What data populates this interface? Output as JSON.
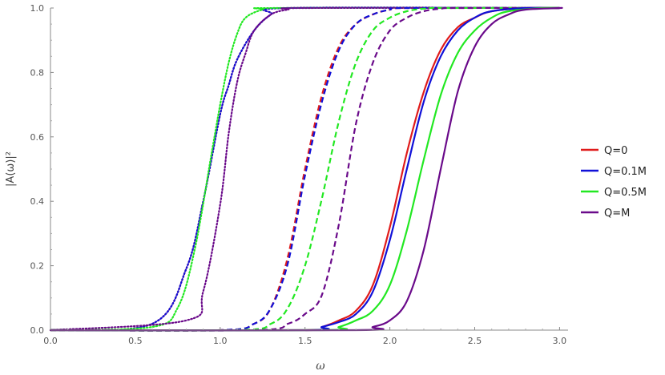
{
  "chart_data": {
    "type": "line",
    "title": "",
    "xlabel": "ω",
    "ylabel": "|A(ω)|²",
    "xlim": [
      0,
      3.05
    ],
    "ylim": [
      0,
      1.0
    ],
    "x_ticks": [
      "0.0",
      "0.5",
      "1.0",
      "1.5",
      "2.0",
      "2.5",
      "3.0"
    ],
    "y_ticks": [
      "0.0",
      "0.2",
      "0.4",
      "0.6",
      "0.8",
      "1.0"
    ],
    "grid": false,
    "legend_position": "right",
    "legend": [
      {
        "label": "Q=0",
        "color": "#e01b1b"
      },
      {
        "label": "Q=0.1M",
        "color": "#1010d8"
      },
      {
        "label": "Q=0.5M",
        "color": "#22e822"
      },
      {
        "label": "Q=M",
        "color": "#6a0a8a"
      }
    ],
    "series": [
      {
        "group": "Q=0",
        "style": "dotted",
        "color": "#e01b1b",
        "x": [
          0.6,
          0.8,
          0.9,
          1.0,
          1.05,
          1.1,
          1.2,
          1.3,
          1.4
        ],
        "y": [
          0.02,
          0.19,
          0.4,
          0.67,
          0.76,
          0.84,
          0.93,
          0.98,
          1.0
        ]
      },
      {
        "group": "Q=0.1M",
        "style": "dotted",
        "color": "#1010d8",
        "x": [
          0.6,
          0.8,
          0.9,
          1.0,
          1.05,
          1.1,
          1.2,
          1.3,
          1.4
        ],
        "y": [
          0.02,
          0.19,
          0.4,
          0.67,
          0.76,
          0.84,
          0.93,
          0.98,
          1.0
        ]
      },
      {
        "group": "Q=0.5M",
        "style": "dotted",
        "color": "#22e822",
        "x": [
          0.6,
          0.75,
          0.85,
          0.95,
          1.0,
          1.05,
          1.1,
          1.15,
          1.25,
          1.35
        ],
        "y": [
          0.01,
          0.07,
          0.25,
          0.55,
          0.7,
          0.83,
          0.92,
          0.97,
          0.995,
          1.0
        ]
      },
      {
        "group": "Q=M",
        "style": "dotted",
        "color": "#6a0a8a",
        "x": [
          0.8,
          0.9,
          1.0,
          1.05,
          1.1,
          1.15,
          1.2,
          1.3,
          1.4,
          1.5
        ],
        "y": [
          0.03,
          0.12,
          0.39,
          0.61,
          0.77,
          0.86,
          0.93,
          0.98,
          0.995,
          1.0
        ]
      },
      {
        "group": "Q=0",
        "style": "dashed",
        "color": "#e01b1b",
        "x": [
          1.0,
          1.2,
          1.3,
          1.4,
          1.5,
          1.6,
          1.7,
          1.8,
          1.9,
          2.0,
          2.1
        ],
        "y": [
          0.0,
          0.02,
          0.07,
          0.23,
          0.5,
          0.73,
          0.88,
          0.95,
          0.98,
          0.995,
          1.0
        ]
      },
      {
        "group": "Q=0.1M",
        "style": "dashed",
        "color": "#1010d8",
        "x": [
          1.0,
          1.2,
          1.3,
          1.4,
          1.5,
          1.6,
          1.7,
          1.8,
          1.9,
          2.0,
          2.1
        ],
        "y": [
          0.0,
          0.02,
          0.07,
          0.21,
          0.48,
          0.71,
          0.87,
          0.95,
          0.98,
          0.995,
          1.0
        ]
      },
      {
        "group": "Q=0.5M",
        "style": "dashed",
        "color": "#22e822",
        "x": [
          1.1,
          1.3,
          1.4,
          1.5,
          1.6,
          1.7,
          1.8,
          1.9,
          2.0,
          2.1,
          2.2,
          2.3
        ],
        "y": [
          0.0,
          0.02,
          0.07,
          0.2,
          0.41,
          0.65,
          0.83,
          0.93,
          0.97,
          0.99,
          0.998,
          1.0
        ]
      },
      {
        "group": "Q=M",
        "style": "dashed",
        "color": "#6a0a8a",
        "x": [
          1.2,
          1.4,
          1.5,
          1.6,
          1.7,
          1.8,
          1.9,
          2.0,
          2.1,
          2.2,
          2.3,
          2.4
        ],
        "y": [
          0.0,
          0.02,
          0.05,
          0.11,
          0.33,
          0.64,
          0.83,
          0.93,
          0.97,
          0.99,
          0.998,
          1.0
        ]
      },
      {
        "group": "Q=0",
        "style": "solid",
        "color": "#e01b1b",
        "x": [
          1.5,
          1.6,
          1.7,
          1.8,
          1.9,
          2.0,
          2.1,
          2.2,
          2.3,
          2.4,
          2.5,
          2.6,
          2.8
        ],
        "y": [
          0.0,
          0.01,
          0.03,
          0.06,
          0.14,
          0.32,
          0.55,
          0.74,
          0.87,
          0.94,
          0.97,
          0.99,
          1.0
        ]
      },
      {
        "group": "Q=0.1M",
        "style": "solid",
        "color": "#1010d8",
        "x": [
          1.5,
          1.6,
          1.7,
          1.8,
          1.9,
          2.0,
          2.1,
          2.2,
          2.3,
          2.4,
          2.5,
          2.6,
          2.8
        ],
        "y": [
          0.0,
          0.01,
          0.025,
          0.05,
          0.12,
          0.28,
          0.5,
          0.71,
          0.85,
          0.93,
          0.97,
          0.99,
          1.0
        ]
      },
      {
        "group": "Q=0.5M",
        "style": "solid",
        "color": "#22e822",
        "x": [
          1.6,
          1.7,
          1.8,
          1.9,
          2.0,
          2.1,
          2.2,
          2.3,
          2.4,
          2.5,
          2.6,
          2.7,
          2.9
        ],
        "y": [
          0.0,
          0.01,
          0.03,
          0.06,
          0.14,
          0.31,
          0.53,
          0.73,
          0.86,
          0.93,
          0.97,
          0.99,
          1.0
        ]
      },
      {
        "group": "Q=M",
        "style": "solid",
        "color": "#6a0a8a",
        "x": [
          1.8,
          1.9,
          2.0,
          2.1,
          2.2,
          2.3,
          2.4,
          2.5,
          2.6,
          2.7,
          2.8,
          3.0
        ],
        "y": [
          0.0,
          0.01,
          0.03,
          0.09,
          0.25,
          0.5,
          0.74,
          0.88,
          0.95,
          0.98,
          0.995,
          1.0
        ]
      }
    ]
  }
}
